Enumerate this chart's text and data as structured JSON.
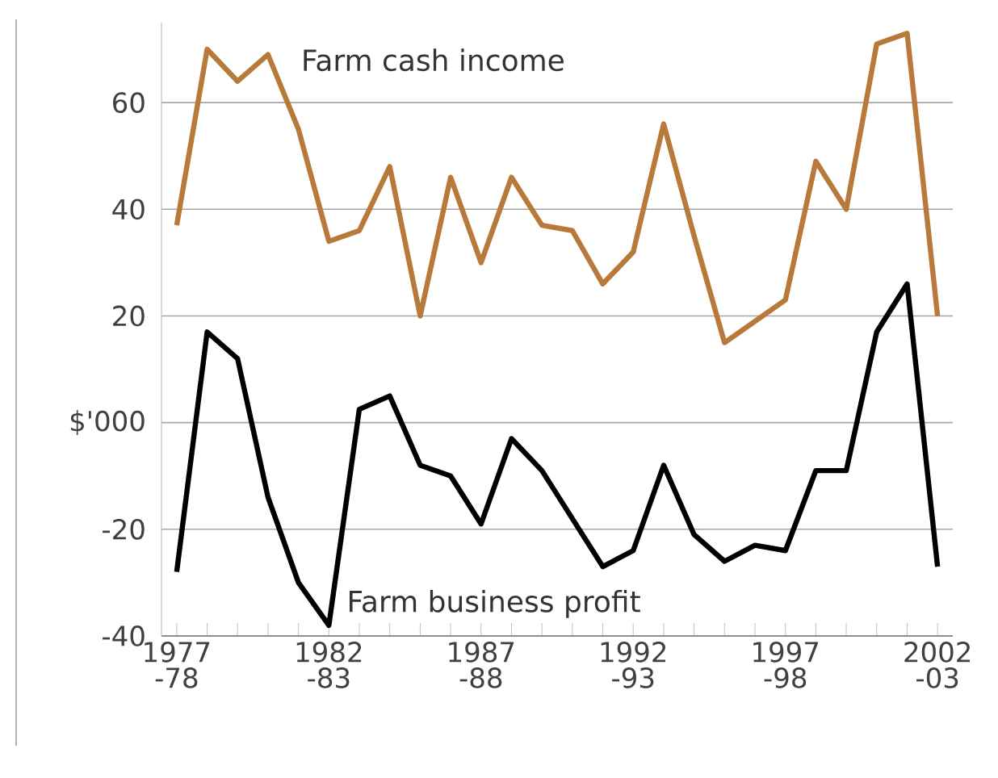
{
  "chart_data": {
    "type": "line",
    "categories": [
      "1977 -78",
      null,
      null,
      null,
      null,
      "1982 -83",
      null,
      null,
      null,
      null,
      "1987 -88",
      null,
      null,
      null,
      null,
      "1992 -93",
      null,
      null,
      null,
      null,
      "1997 -98",
      null,
      null,
      null,
      null,
      "2002 -03"
    ],
    "series": [
      {
        "name": "Farm cash income",
        "color": "#b87a3a",
        "values": [
          37,
          70,
          64,
          69,
          55,
          34,
          36,
          48,
          20,
          46,
          30,
          46,
          37,
          36,
          26,
          32,
          56,
          35,
          15,
          19,
          23,
          49,
          40,
          71,
          73,
          20
        ]
      },
      {
        "name": "Farm business profit",
        "color": "#000000",
        "values": [
          -28,
          17,
          12,
          -14,
          -30,
          -38,
          2.5,
          5,
          -8,
          -10,
          -19,
          -3,
          -9,
          -18,
          -27,
          -24,
          -8,
          -21,
          -26,
          -23,
          -24,
          -9,
          -9,
          17,
          26,
          -27
        ]
      }
    ],
    "ylim": [
      -40,
      75
    ],
    "yticks": [
      -40,
      -20,
      {
        "value": 0,
        "label": "$'000"
      },
      20,
      40,
      60
    ],
    "grid": "y",
    "marker": "none",
    "line_style": "solid"
  }
}
